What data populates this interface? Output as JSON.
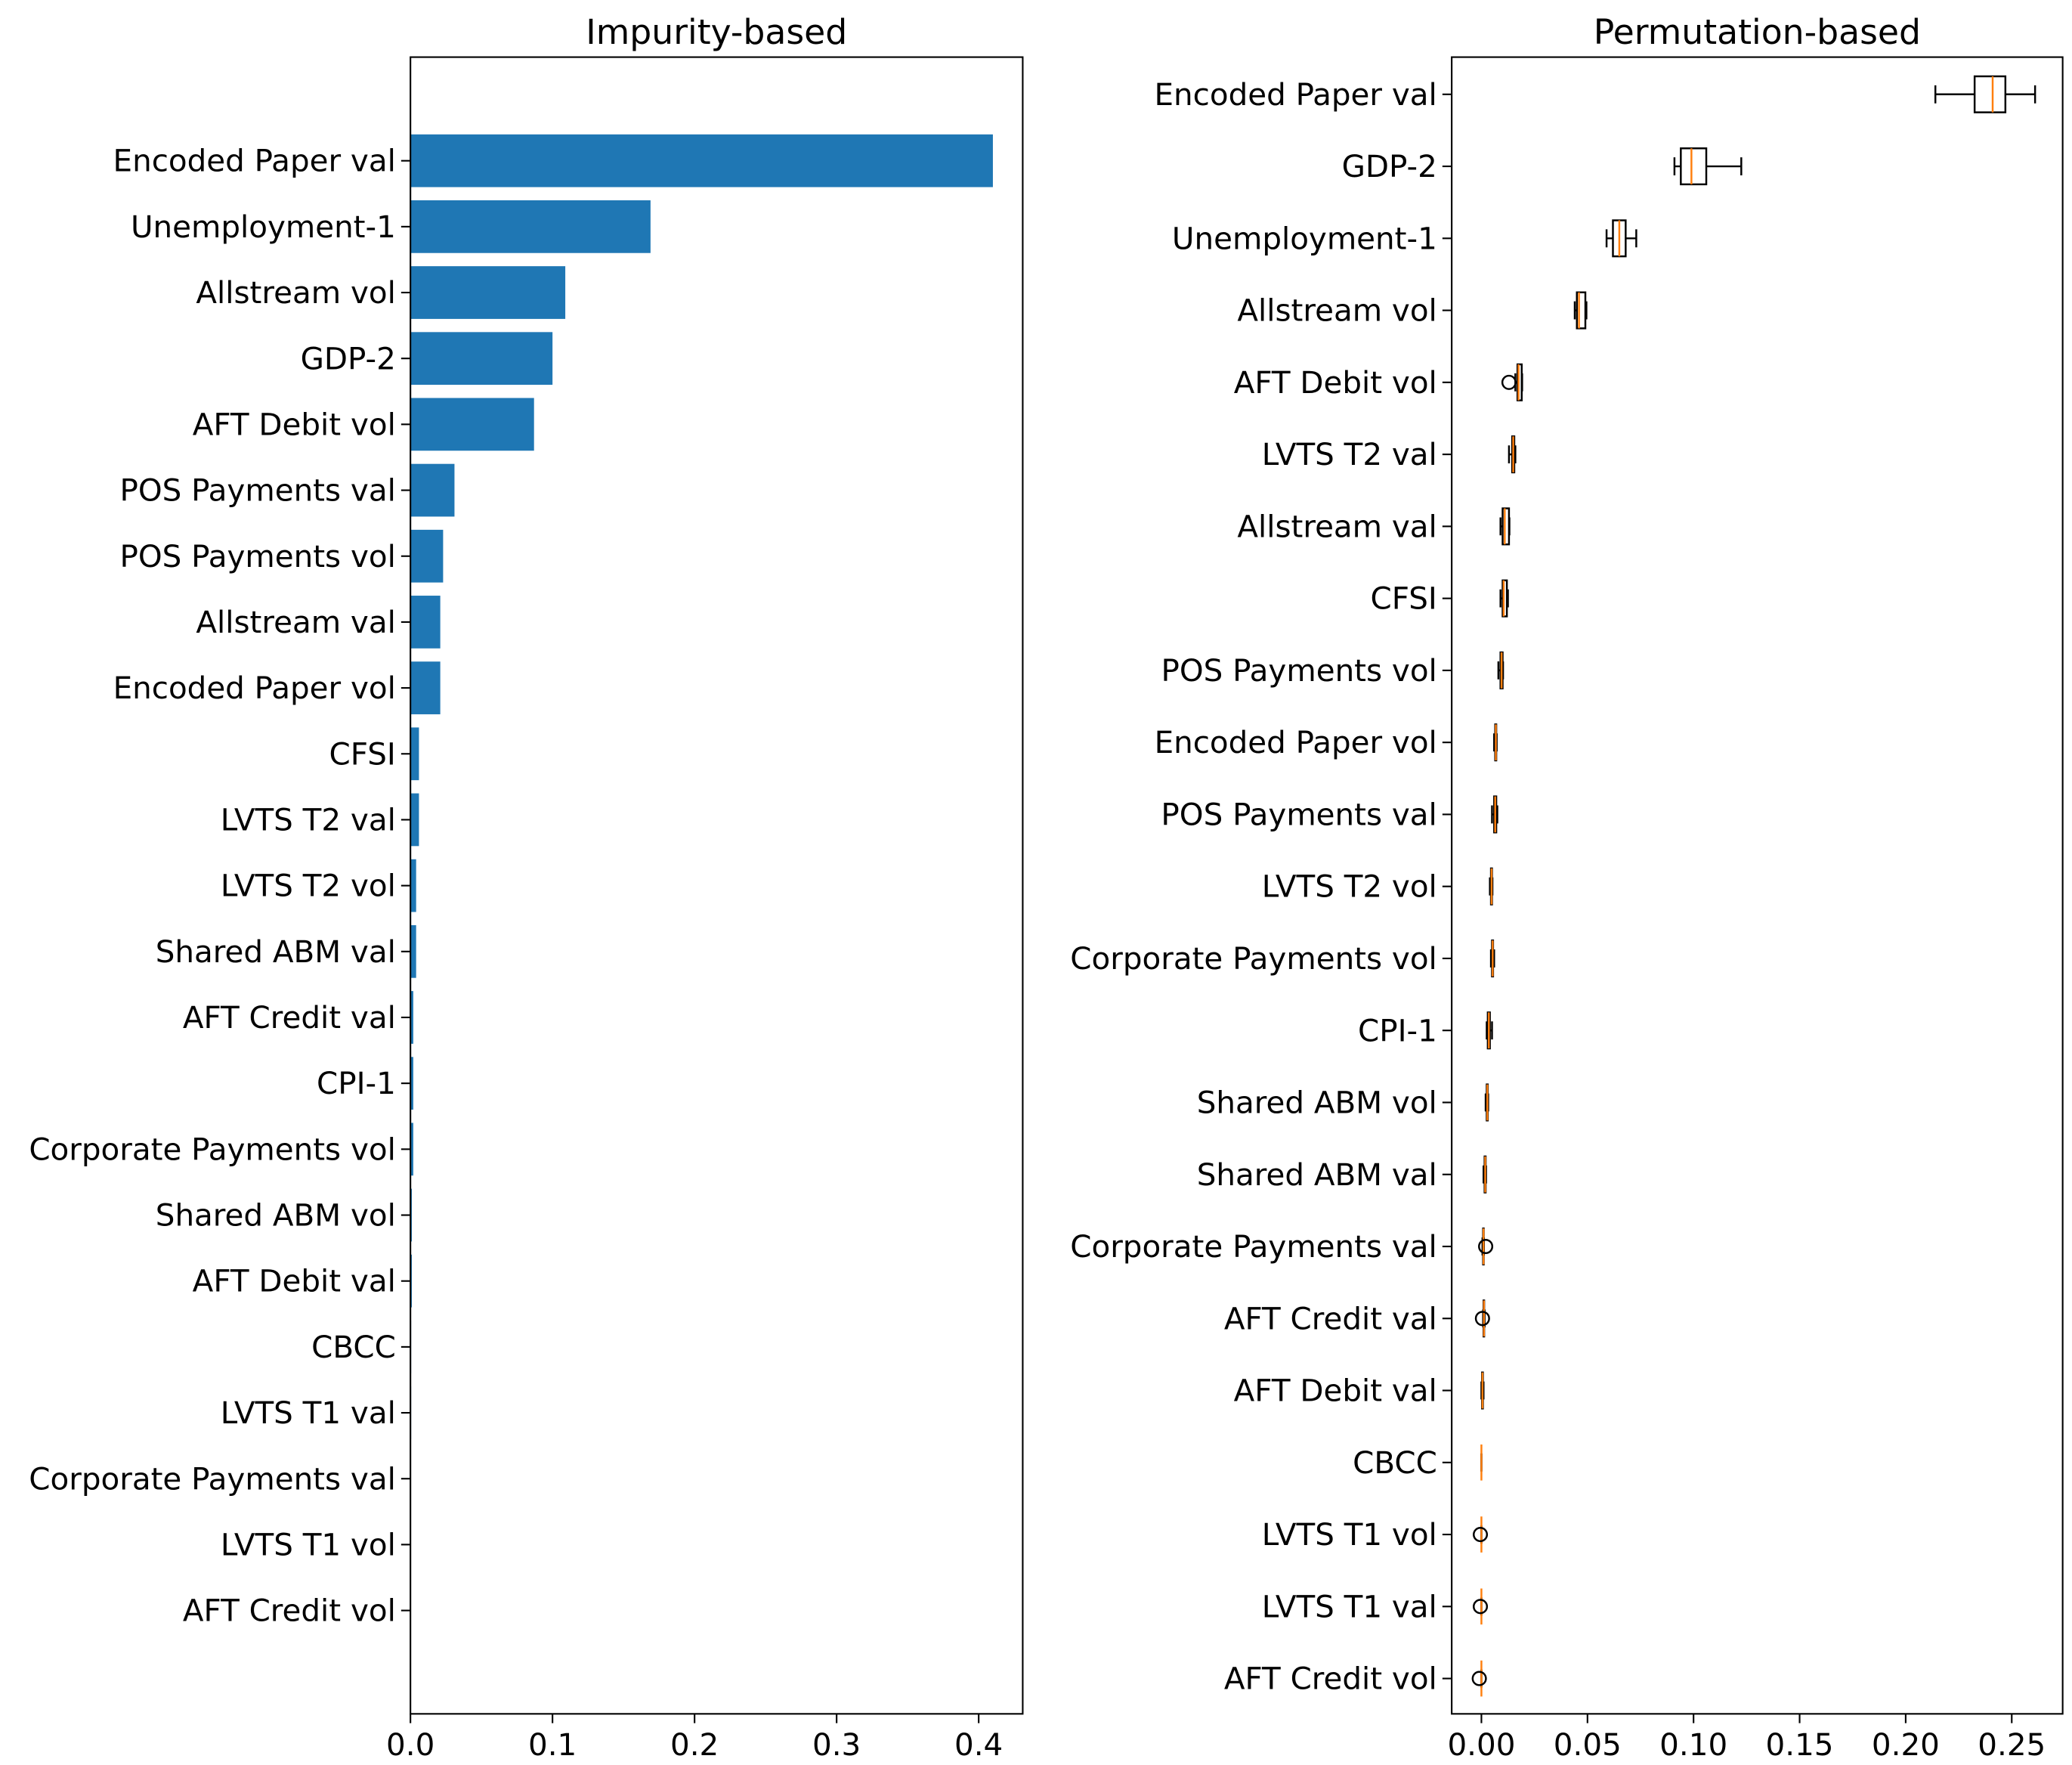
{
  "chart_data": [
    {
      "type": "barh",
      "title": "Impurity-based",
      "color": "#1f77b4",
      "categories": [
        "Encoded  Paper val",
        "Unemployment-1",
        "Allstream vol",
        "GDP-2",
        "AFT Debit vol",
        "POS Payments val",
        "POS Payments vol",
        "Allstream val",
        "Encoded  Paper vol",
        "CFSI",
        "LVTS T2 val",
        "LVTS T2 vol",
        "Shared ABM val",
        "AFT Credit val",
        "CPI-1",
        "Corporate Payments vol",
        "Shared ABM vol",
        "AFT Debit val",
        "CBCC",
        "LVTS T1 val",
        "Corporate Payments val",
        "LVTS T1 vol",
        "AFT Credit vol"
      ],
      "values": [
        0.41,
        0.169,
        0.109,
        0.1,
        0.087,
        0.031,
        0.023,
        0.021,
        0.021,
        0.006,
        0.006,
        0.004,
        0.004,
        0.002,
        0.002,
        0.002,
        0.001,
        0.001,
        0.0005,
        0.0005,
        0.0004,
        0.0003,
        0.0003
      ],
      "xlim": [
        0,
        0.431
      ],
      "xticks": [
        {
          "value": 0,
          "label": "0.0"
        },
        {
          "value": 0.1,
          "label": "0.1"
        },
        {
          "value": 0.2,
          "label": "0.2"
        },
        {
          "value": 0.3,
          "label": "0.3"
        },
        {
          "value": 0.4,
          "label": "0.4"
        }
      ]
    },
    {
      "type": "boxh",
      "title": "Permutation-based",
      "color": "#000000",
      "median_color": "#ff7f0e",
      "categories": [
        "Encoded  Paper val",
        "GDP-2",
        "Unemployment-1",
        "Allstream vol",
        "AFT Debit vol",
        "LVTS T2 val",
        "Allstream val",
        "CFSI",
        "POS Payments vol",
        "Encoded  Paper vol",
        "POS Payments val",
        "LVTS T2 vol",
        "Corporate Payments vol",
        "CPI-1",
        "Shared ABM vol",
        "Shared ABM val",
        "Corporate Payments val",
        "AFT Credit val",
        "AFT Debit val",
        "CBCC",
        "LVTS T1 vol",
        "LVTS T1 val",
        "AFT Credit vol"
      ],
      "boxes": [
        {
          "whislo": 0.214,
          "q1": 0.2325,
          "med": 0.241,
          "q3": 0.247,
          "whishi": 0.261
        },
        {
          "whislo": 0.091,
          "q1": 0.094,
          "med": 0.099,
          "q3": 0.106,
          "whishi": 0.1225
        },
        {
          "whislo": 0.059,
          "q1": 0.062,
          "med": 0.065,
          "q3": 0.068,
          "whishi": 0.073
        },
        {
          "whislo": 0.044,
          "q1": 0.045,
          "med": 0.046,
          "q3": 0.049,
          "whishi": 0.0495
        },
        {
          "whislo": 0.016,
          "q1": 0.017,
          "med": 0.0175,
          "q3": 0.019,
          "whishi": 0.0192,
          "fliers": [
            0.013
          ]
        },
        {
          "whislo": 0.013,
          "q1": 0.0145,
          "med": 0.015,
          "q3": 0.0155,
          "whishi": 0.016
        },
        {
          "whislo": 0.009,
          "q1": 0.01,
          "med": 0.011,
          "q3": 0.013,
          "whishi": 0.0132
        },
        {
          "whislo": 0.009,
          "q1": 0.01,
          "med": 0.0105,
          "q3": 0.012,
          "whishi": 0.0125
        },
        {
          "whislo": 0.008,
          "q1": 0.009,
          "med": 0.0095,
          "q3": 0.01,
          "whishi": 0.0102
        },
        {
          "whislo": 0.006,
          "q1": 0.0065,
          "med": 0.0068,
          "q3": 0.007,
          "whishi": 0.0072
        },
        {
          "whislo": 0.005,
          "q1": 0.006,
          "med": 0.0065,
          "q3": 0.007,
          "whishi": 0.0075
        },
        {
          "whislo": 0.004,
          "q1": 0.0045,
          "med": 0.0048,
          "q3": 0.005,
          "whishi": 0.0052
        },
        {
          "whislo": 0.0045,
          "q1": 0.005,
          "med": 0.0053,
          "q3": 0.0055,
          "whishi": 0.006
        },
        {
          "whislo": 0.0025,
          "q1": 0.003,
          "med": 0.0035,
          "q3": 0.004,
          "whishi": 0.005
        },
        {
          "whislo": 0.002,
          "q1": 0.0025,
          "med": 0.0028,
          "q3": 0.003,
          "whishi": 0.0032
        },
        {
          "whislo": 0.001,
          "q1": 0.0015,
          "med": 0.0018,
          "q3": 0.002,
          "whishi": 0.0022
        },
        {
          "whislo": 0.0005,
          "q1": 0.0008,
          "med": 0.001,
          "q3": 0.0011,
          "whishi": 0.0012,
          "fliers": [
            0.002
          ]
        },
        {
          "whislo": 0.0008,
          "q1": 0.001,
          "med": 0.0012,
          "q3": 0.0013,
          "whishi": 0.0015,
          "fliers": [
            0.0005
          ]
        },
        {
          "whislo": 0,
          "q1": 0.0003,
          "med": 0.0005,
          "q3": 0.0007,
          "whishi": 0.001
        },
        {
          "whislo": 0,
          "q1": 0,
          "med": 0,
          "q3": 0,
          "whishi": 0
        },
        {
          "whislo": 0,
          "q1": 0,
          "med": 0,
          "q3": 0,
          "whishi": 0,
          "fliers": [
            -0.0005
          ]
        },
        {
          "whislo": 0,
          "q1": 0,
          "med": 0,
          "q3": 0,
          "whishi": 0,
          "fliers": [
            -0.0005
          ]
        },
        {
          "whislo": 0,
          "q1": 0,
          "med": 0,
          "q3": 0,
          "whishi": 0,
          "fliers": [
            -0.001
          ]
        }
      ],
      "xlim": [
        -0.014,
        0.274
      ],
      "xticks": [
        {
          "value": 0,
          "label": "0.00"
        },
        {
          "value": 0.05,
          "label": "0.05"
        },
        {
          "value": 0.1,
          "label": "0.10"
        },
        {
          "value": 0.15,
          "label": "0.15"
        },
        {
          "value": 0.2,
          "label": "0.20"
        },
        {
          "value": 0.25,
          "label": "0.25"
        }
      ]
    }
  ]
}
